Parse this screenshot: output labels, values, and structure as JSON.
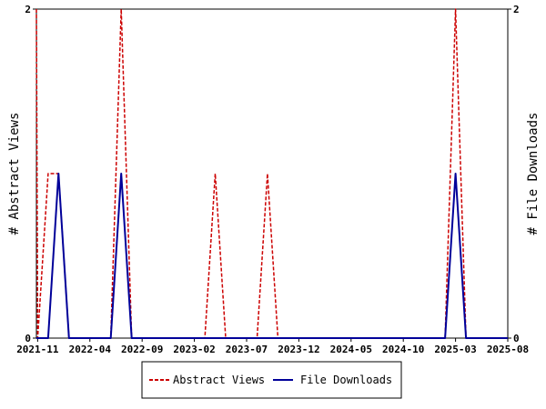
{
  "chart_data": {
    "type": "line",
    "x": [
      "2021-10",
      "2021-11",
      "2021-12",
      "2022-01",
      "2022-02",
      "2022-03",
      "2022-04",
      "2022-05",
      "2022-06",
      "2022-07",
      "2022-08",
      "2022-09",
      "2022-10",
      "2022-11",
      "2022-12",
      "2023-01",
      "2023-02",
      "2023-03",
      "2023-04",
      "2023-05",
      "2023-06",
      "2023-07",
      "2023-08",
      "2023-09",
      "2023-10",
      "2023-11",
      "2023-12",
      "2024-01",
      "2024-02",
      "2024-03",
      "2024-04",
      "2024-05",
      "2024-06",
      "2024-07",
      "2024-08",
      "2024-09",
      "2024-10",
      "2024-11",
      "2024-12",
      "2025-01",
      "2025-02",
      "2025-03",
      "2025-04",
      "2025-05",
      "2025-06",
      "2025-07",
      "2025-08"
    ],
    "x_tick_labels": [
      "2021-11",
      "2022-04",
      "2022-09",
      "2023-02",
      "2023-07",
      "2023-12",
      "2024-05",
      "2024-10",
      "2025-03",
      "2025-08"
    ],
    "series": [
      {
        "name": "Abstract Views",
        "color": "#cc0000",
        "dash": "dashed",
        "axis": "left",
        "values": [
          2,
          0,
          1,
          1,
          0,
          0,
          0,
          0,
          0,
          2,
          0,
          0,
          0,
          0,
          0,
          0,
          0,
          0,
          1,
          0,
          0,
          0,
          0,
          1,
          0,
          0,
          0,
          0,
          0,
          0,
          0,
          0,
          0,
          0,
          0,
          0,
          0,
          0,
          0,
          0,
          0,
          2,
          0,
          0,
          0,
          0,
          0
        ]
      },
      {
        "name": "File Downloads",
        "color": "#000099",
        "dash": "solid",
        "axis": "right",
        "values": [
          0,
          0,
          0,
          1,
          0,
          0,
          0,
          0,
          0,
          1,
          0,
          0,
          0,
          0,
          0,
          0,
          0,
          0,
          0,
          0,
          0,
          0,
          0,
          0,
          0,
          0,
          0,
          0,
          0,
          0,
          0,
          0,
          0,
          0,
          0,
          0,
          0,
          0,
          0,
          0,
          0,
          1,
          0,
          0,
          0,
          0,
          0
        ]
      }
    ],
    "ylabel": "# Abstract Views",
    "y2label": "# File Downloads",
    "ylim": [
      0,
      2
    ],
    "y2lim": [
      0,
      2
    ],
    "y_ticks": [
      "0",
      "2"
    ],
    "y2_ticks": [
      "0",
      "2"
    ],
    "grid": false,
    "legend": "bottom-center"
  }
}
